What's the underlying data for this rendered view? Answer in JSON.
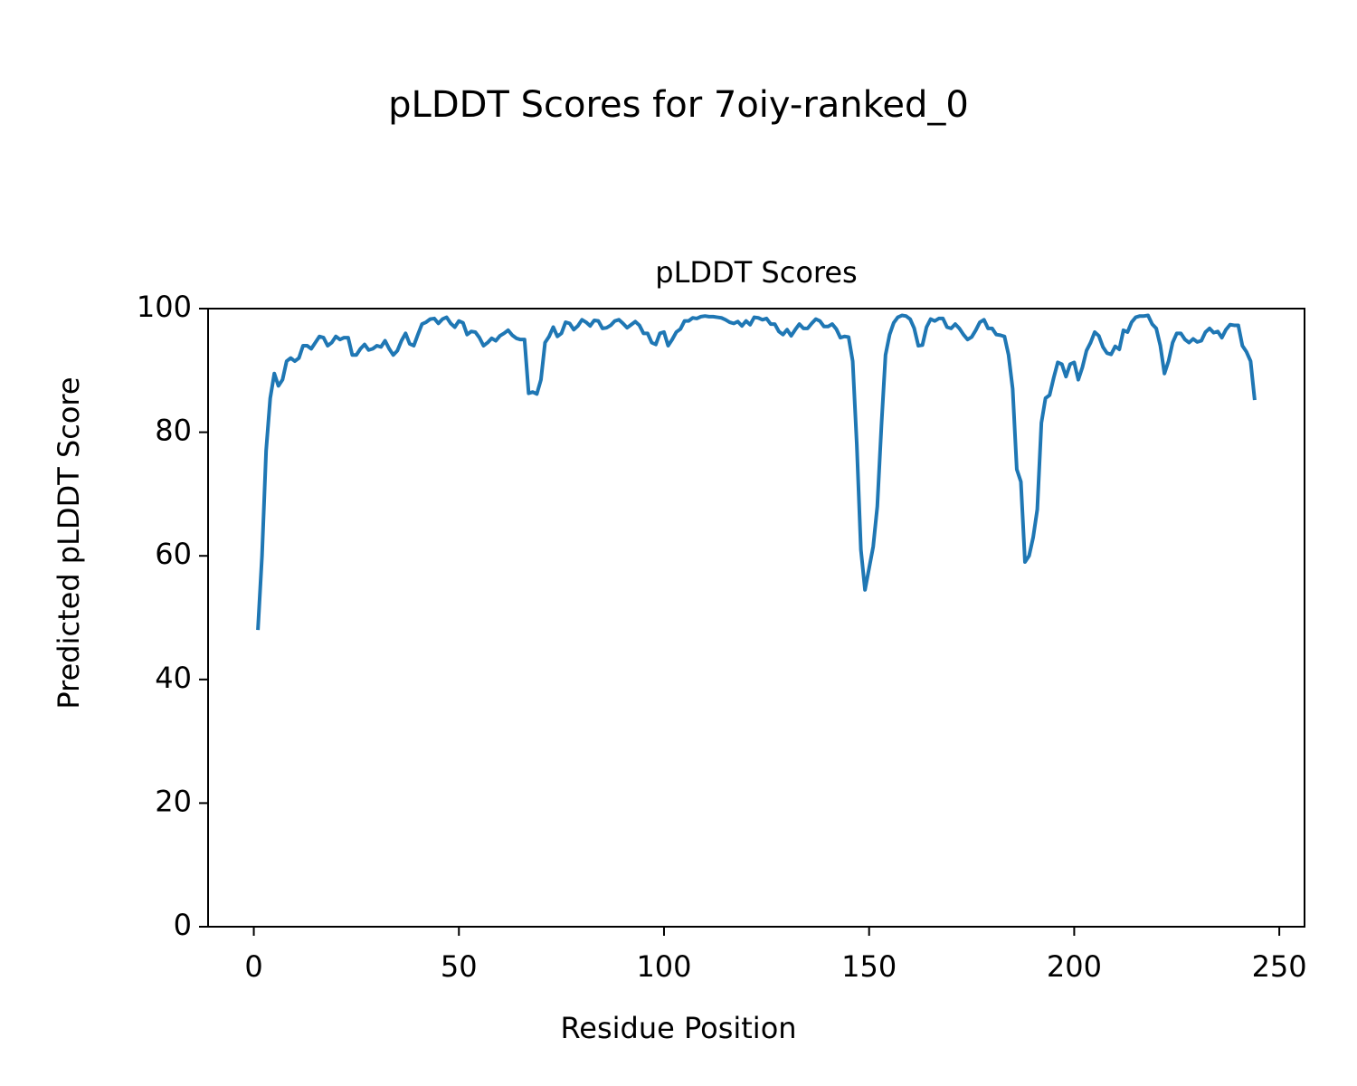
{
  "chart_data": {
    "type": "line",
    "title": "pLDDT Scores for 7oiy-ranked_0",
    "subtitle": "pLDDT Scores",
    "xlabel": "Residue Position",
    "ylabel": "Predicted pLDDT Score",
    "xlim": [
      -11.15,
      256.15
    ],
    "xticks": [
      0,
      50,
      100,
      150,
      200,
      250
    ],
    "ylim": [
      0,
      100
    ],
    "yticks": [
      0,
      20,
      40,
      60,
      80,
      100
    ],
    "grid": false,
    "x": [
      1,
      2,
      3,
      4,
      5,
      6,
      7,
      8,
      9,
      10,
      11,
      12,
      13,
      14,
      15,
      16,
      17,
      18,
      19,
      20,
      21,
      22,
      23,
      24,
      25,
      26,
      27,
      28,
      29,
      30,
      31,
      32,
      33,
      34,
      35,
      36,
      37,
      38,
      39,
      40,
      41,
      42,
      43,
      44,
      45,
      46,
      47,
      48,
      49,
      50,
      51,
      52,
      53,
      54,
      55,
      56,
      57,
      58,
      59,
      60,
      61,
      62,
      63,
      64,
      65,
      66,
      67,
      68,
      69,
      70,
      71,
      72,
      73,
      74,
      75,
      76,
      77,
      78,
      79,
      80,
      81,
      82,
      83,
      84,
      85,
      86,
      87,
      88,
      89,
      90,
      91,
      92,
      93,
      94,
      95,
      96,
      97,
      98,
      99,
      100,
      101,
      102,
      103,
      104,
      105,
      106,
      107,
      108,
      109,
      110,
      111,
      112,
      113,
      114,
      115,
      116,
      117,
      118,
      119,
      120,
      121,
      122,
      123,
      124,
      125,
      126,
      127,
      128,
      129,
      130,
      131,
      132,
      133,
      134,
      135,
      136,
      137,
      138,
      139,
      140,
      141,
      142,
      143,
      144,
      145,
      146,
      147,
      148,
      149,
      150,
      151,
      152,
      153,
      154,
      155,
      156,
      157,
      158,
      159,
      160,
      161,
      162,
      163,
      164,
      165,
      166,
      167,
      168,
      169,
      170,
      171,
      172,
      173,
      174,
      175,
      176,
      177,
      178,
      179,
      180,
      181,
      182,
      183,
      184,
      185,
      186,
      187,
      188,
      189,
      190,
      191,
      192,
      193,
      194,
      195,
      196,
      197,
      198,
      199,
      200,
      201,
      202,
      203,
      204,
      205,
      206,
      207,
      208,
      209,
      210,
      211,
      212,
      213,
      214,
      215,
      216,
      217,
      218,
      219,
      220,
      221,
      222,
      223,
      224,
      225,
      226,
      227,
      228,
      229,
      230,
      231,
      232,
      233,
      234,
      235,
      236,
      237,
      238,
      239,
      240,
      241,
      242,
      243,
      244
    ],
    "series": [
      {
        "name": "pLDDT",
        "color": "#1f77b4",
        "values": [
          48,
          60,
          77,
          85.5,
          89.5,
          87.5,
          88.5,
          91.5,
          92,
          91.5,
          92,
          94,
          94,
          93.5,
          94.5,
          95.5,
          95.3,
          94,
          94.5,
          95.5,
          95,
          95.3,
          95.3,
          92.5,
          92.5,
          93.5,
          94.2,
          93.3,
          93.5,
          94,
          93.8,
          94.8,
          93.5,
          92.5,
          93.2,
          94.8,
          96,
          94.3,
          94,
          95.8,
          97.5,
          97.8,
          98.3,
          98.4,
          97.6,
          98.3,
          98.6,
          97.6,
          97,
          98,
          97.7,
          95.8,
          96.3,
          96.2,
          95.3,
          94,
          94.5,
          95.2,
          94.8,
          95.6,
          96,
          96.5,
          95.7,
          95.2,
          95,
          95,
          86.3,
          86.5,
          86.2,
          88.5,
          94.5,
          95.5,
          97,
          95.5,
          96,
          97.8,
          97.6,
          96.6,
          97.2,
          98.2,
          97.8,
          97.2,
          98.1,
          98,
          96.8,
          96.9,
          97.3,
          98,
          98.2,
          97.6,
          96.9,
          97.4,
          97.9,
          97.3,
          96,
          96,
          94.5,
          94.2,
          96,
          96.2,
          94,
          95,
          96.2,
          96.7,
          98,
          98,
          98.5,
          98.4,
          98.7,
          98.8,
          98.7,
          98.7,
          98.6,
          98.5,
          98.2,
          97.8,
          97.6,
          97.9,
          97.2,
          98,
          97.4,
          98.6,
          98.5,
          98.2,
          98.4,
          97.5,
          97.5,
          96.3,
          95.8,
          96.6,
          95.6,
          96.6,
          97.5,
          96.8,
          96.8,
          97.6,
          98.3,
          98,
          97.1,
          97.1,
          97.5,
          96.7,
          95.3,
          95.5,
          95.4,
          91.5,
          78,
          61,
          54.5,
          58,
          61.5,
          68,
          81,
          92.5,
          95.8,
          97.7,
          98.6,
          98.9,
          98.8,
          98.3,
          96.8,
          94,
          94.1,
          97,
          98.3,
          98,
          98.4,
          98.4,
          97,
          96.8,
          97.5,
          96.8,
          95.8,
          95,
          95.4,
          96.5,
          97.8,
          98.2,
          96.8,
          96.8,
          95.8,
          95.7,
          95.5,
          92.5,
          87,
          74,
          72,
          59,
          60,
          63,
          67.5,
          81.5,
          85.5,
          86,
          88.8,
          91.3,
          91,
          89,
          91,
          91.3,
          88.5,
          90.5,
          93.2,
          94.5,
          96.2,
          95.6,
          93.8,
          92.8,
          92.6,
          93.9,
          93.4,
          96.5,
          96.2,
          97.8,
          98.6,
          98.8,
          98.8,
          98.9,
          97.5,
          96.8,
          94,
          89.5,
          91.5,
          94.5,
          96,
          96,
          95,
          94.5,
          95.1,
          94.6,
          94.8,
          96.2,
          96.8,
          96.1,
          96.3,
          95.3,
          96.6,
          97.4,
          97.3,
          97.3,
          94,
          93,
          91.5,
          85.2
        ]
      }
    ]
  }
}
